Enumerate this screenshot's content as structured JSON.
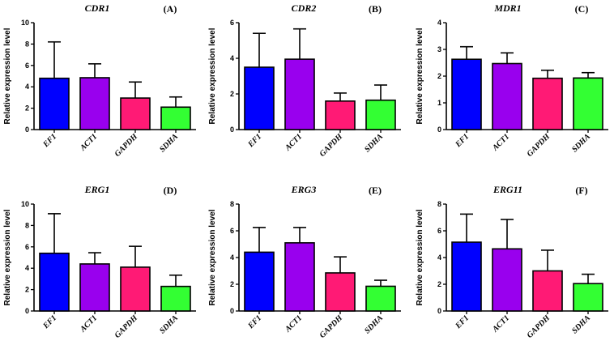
{
  "chart_data": [
    {
      "type": "bar",
      "panel": "(A)",
      "title": "CDR1",
      "ylabel": "Relative expression level",
      "categories": [
        "EF1",
        "ACT1",
        "GAPDH",
        "SDHA"
      ],
      "values": [
        4.8,
        4.85,
        2.95,
        2.1
      ],
      "errors": [
        3.4,
        1.3,
        1.5,
        0.95
      ],
      "ylim": [
        0,
        10
      ],
      "yticks": [
        "0",
        "2",
        "4",
        "6",
        "8",
        "10"
      ]
    },
    {
      "type": "bar",
      "panel": "(B)",
      "title": "CDR2",
      "ylabel": "Relative expression level",
      "categories": [
        "EF1",
        "ACT1",
        "GAPDH",
        "SDHA"
      ],
      "values": [
        3.5,
        3.95,
        1.6,
        1.65
      ],
      "errors": [
        1.9,
        1.7,
        0.45,
        0.85
      ],
      "ylim": [
        0,
        6
      ],
      "yticks": [
        "0",
        "2",
        "4",
        "6"
      ]
    },
    {
      "type": "bar",
      "panel": "(C)",
      "title": "MDR1",
      "ylabel": "Relative expression level",
      "categories": [
        "EF1",
        "ACT1",
        "GAPDH",
        "SDHA"
      ],
      "values": [
        2.63,
        2.47,
        1.92,
        1.93
      ],
      "errors": [
        0.47,
        0.4,
        0.3,
        0.2
      ],
      "ylim": [
        0,
        4
      ],
      "yticks": [
        "0",
        "1",
        "2",
        "3",
        "4"
      ]
    },
    {
      "type": "bar",
      "panel": "(D)",
      "title": "ERG1",
      "ylabel": "Relative expression level",
      "categories": [
        "EF1",
        "ACT1",
        "GAPDH",
        "SDHA"
      ],
      "values": [
        5.4,
        4.4,
        4.1,
        2.3
      ],
      "errors": [
        3.7,
        1.05,
        1.95,
        1.05
      ],
      "ylim": [
        0,
        10
      ],
      "yticks": [
        "0",
        "2",
        "4",
        "6",
        "8",
        "10"
      ]
    },
    {
      "type": "bar",
      "panel": "(E)",
      "title": "ERG3",
      "ylabel": "Relative expression level",
      "categories": [
        "EF1",
        "ACT1",
        "GAPDH",
        "SDHA"
      ],
      "values": [
        4.4,
        5.1,
        2.85,
        1.85
      ],
      "errors": [
        1.85,
        1.15,
        1.2,
        0.45
      ],
      "ylim": [
        0,
        8
      ],
      "yticks": [
        "0",
        "2",
        "4",
        "6",
        "8"
      ]
    },
    {
      "type": "bar",
      "panel": "(F)",
      "title": "ERG11",
      "ylabel": "Relative expression level",
      "categories": [
        "EF1",
        "ACT1",
        "GAPDH",
        "SDHA"
      ],
      "values": [
        5.15,
        4.65,
        3.0,
        2.05
      ],
      "errors": [
        2.1,
        2.2,
        1.55,
        0.7
      ],
      "ylim": [
        0,
        8
      ],
      "yticks": [
        "0",
        "2",
        "4",
        "6",
        "8"
      ]
    }
  ],
  "colors": {
    "EF1": "#0000ff",
    "ACT1": "#9900ee",
    "GAPDH": "#ff1a75",
    "SDHA": "#33ff33",
    "stroke": "#000000"
  }
}
